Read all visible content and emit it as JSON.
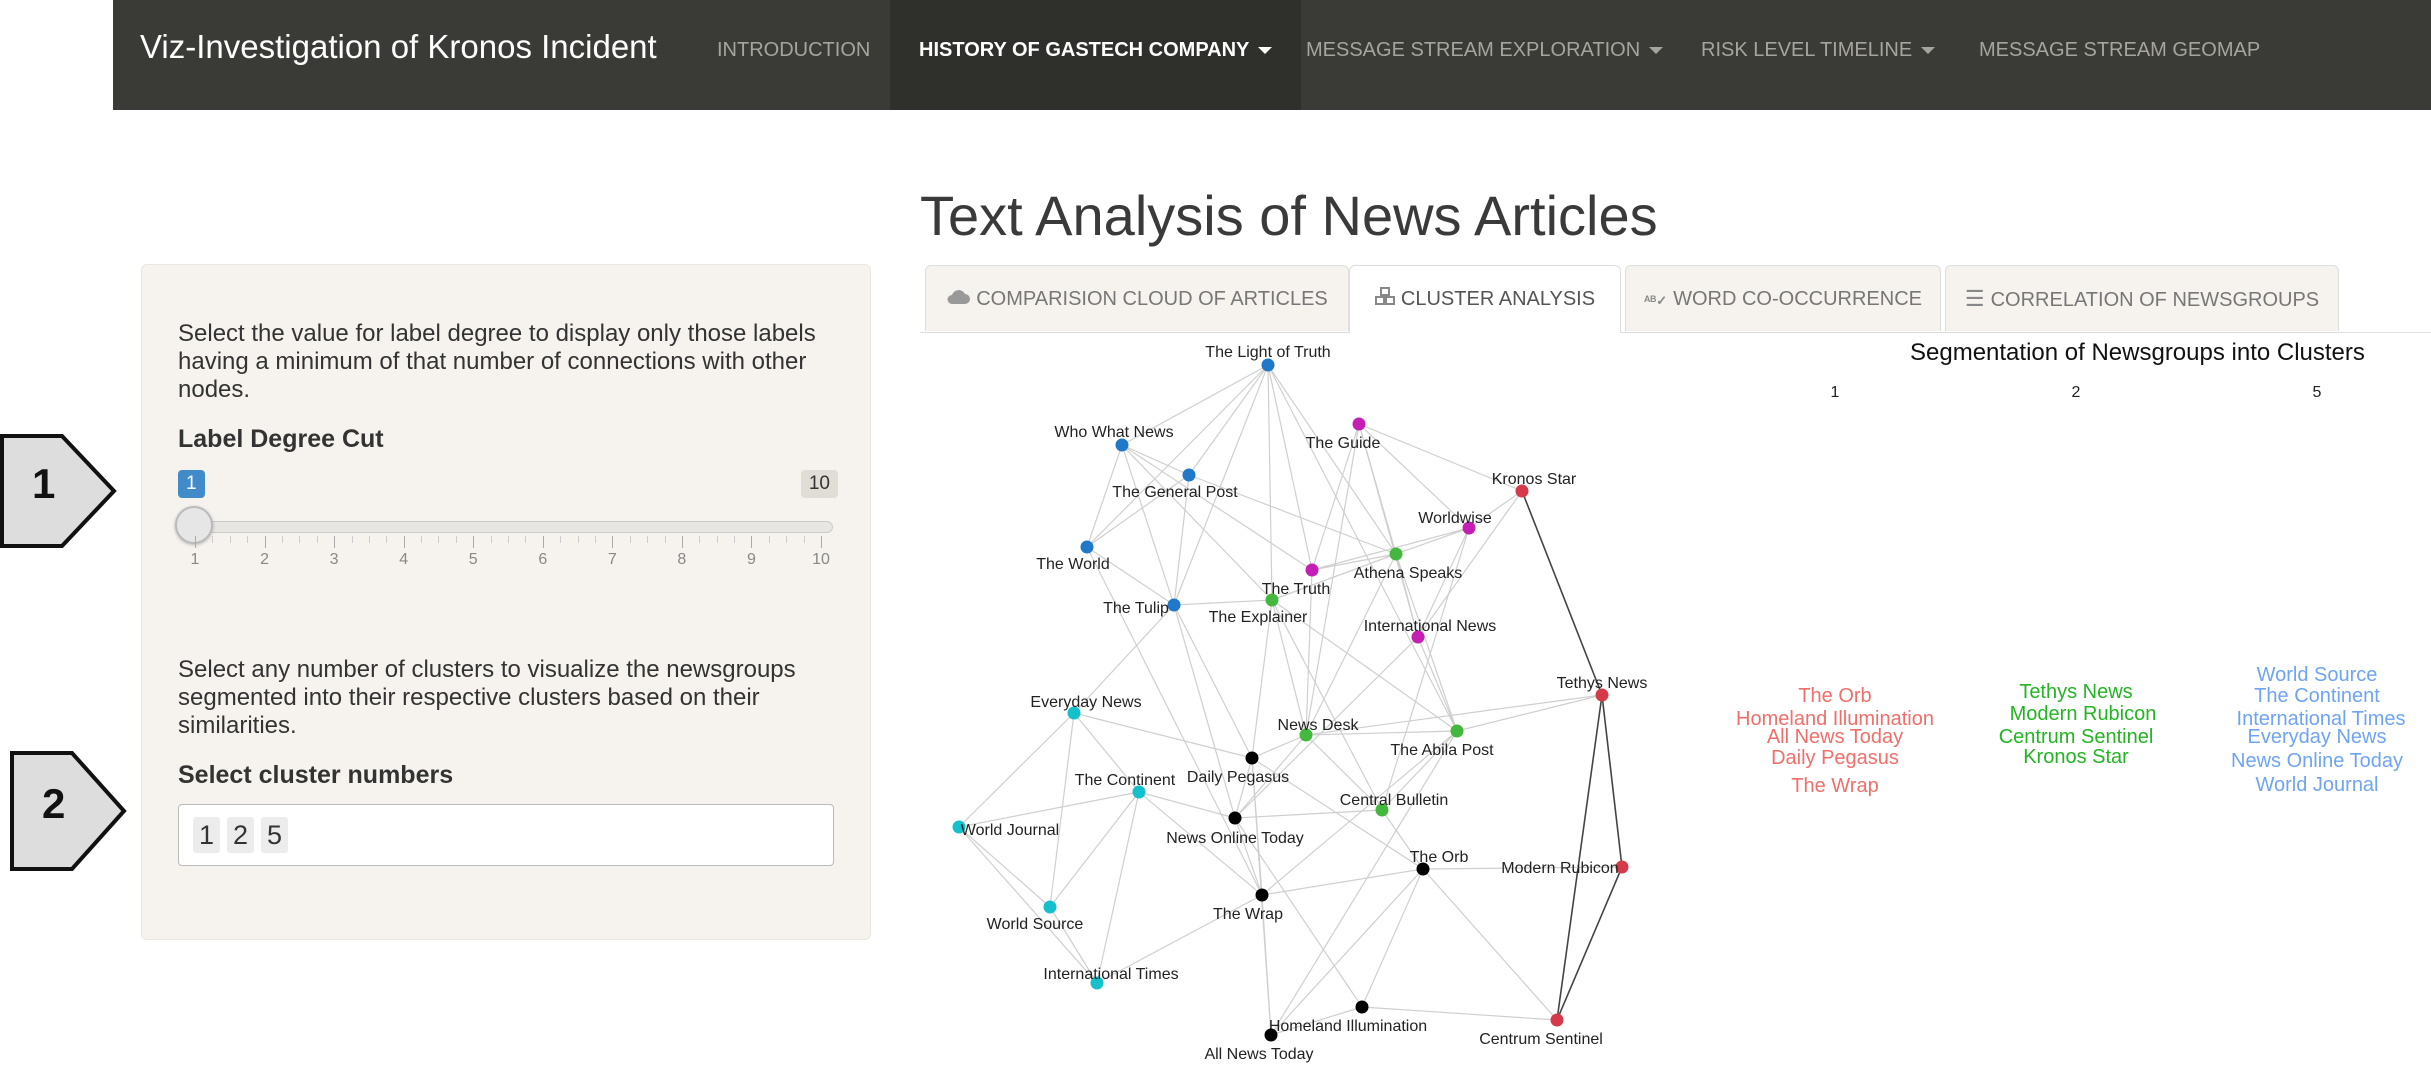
{
  "app": {
    "brand": "Viz-Investigation of Kronos Incident",
    "nav": [
      {
        "label": "INTRODUCTION",
        "active": false,
        "dropdown": false
      },
      {
        "label": "HISTORY OF GASTECH COMPANY",
        "active": true,
        "dropdown": true
      },
      {
        "label": "MESSAGE STREAM EXPLORATION",
        "active": false,
        "dropdown": true
      },
      {
        "label": "RISK LEVEL TIMELINE",
        "active": false,
        "dropdown": true
      },
      {
        "label": "MESSAGE STREAM GEOMAP",
        "active": false,
        "dropdown": false
      }
    ]
  },
  "markers": [
    "1",
    "2"
  ],
  "sidebar": {
    "help1": "Select the value for label degree to display only those labels having a minimum of that number of connections with other nodes.",
    "slider_label": "Label Degree Cut",
    "slider": {
      "min": 1,
      "max": 10,
      "value": 1,
      "min_text": "1",
      "max_text": "10",
      "ticks": [
        "1",
        "2",
        "3",
        "4",
        "5",
        "6",
        "7",
        "8",
        "9",
        "10"
      ]
    },
    "help2": "Select any number of clusters to visualize the newsgroups segmented into their respective clusters based on their similarities.",
    "select_label": "Select cluster numbers",
    "selected": [
      "1",
      "2",
      "5"
    ]
  },
  "main": {
    "title": "Text Analysis of News Articles",
    "tabs": [
      {
        "label": "COMPARISION CLOUD OF ARTICLES",
        "icon": "cloud-icon",
        "active": false
      },
      {
        "label": "CLUSTER ANALYSIS",
        "icon": "cubes-icon",
        "active": true
      },
      {
        "label": "WORD CO-OCCURRENCE",
        "icon": "spell-check-icon",
        "active": false
      },
      {
        "label": "CORRELATION OF NEWSGROUPS",
        "icon": "list-icon",
        "active": false
      }
    ]
  },
  "network": {
    "colors": {
      "blue": "#1f78c8",
      "magenta": "#c41eb4",
      "green": "#44b83e",
      "red": "#d43a4a",
      "cyan": "#14c0cc",
      "black": "#000000"
    },
    "nodes": [
      {
        "label": "The Light of Truth",
        "group": "blue"
      },
      {
        "label": "Who What News",
        "group": "blue"
      },
      {
        "label": "The General Post",
        "group": "blue"
      },
      {
        "label": "The World",
        "group": "blue"
      },
      {
        "label": "The Tulip",
        "group": "blue"
      },
      {
        "label": "The Guide",
        "group": "magenta"
      },
      {
        "label": "Worldwise",
        "group": "magenta"
      },
      {
        "label": "The Truth",
        "group": "magenta"
      },
      {
        "label": "International News",
        "group": "magenta"
      },
      {
        "label": "Athena Speaks",
        "group": "green"
      },
      {
        "label": "The Explainer",
        "group": "green"
      },
      {
        "label": "News Desk",
        "group": "green"
      },
      {
        "label": "The Abila Post",
        "group": "green"
      },
      {
        "label": "Central Bulletin",
        "group": "green"
      },
      {
        "label": "Kronos Star",
        "group": "red"
      },
      {
        "label": "Tethys News",
        "group": "red"
      },
      {
        "label": "Modern Rubicon",
        "group": "red"
      },
      {
        "label": "Centrum Sentinel",
        "group": "red"
      },
      {
        "label": "Everyday News",
        "group": "cyan"
      },
      {
        "label": "The Continent",
        "group": "cyan"
      },
      {
        "label": "World Journal",
        "group": "cyan"
      },
      {
        "label": "World Source",
        "group": "cyan"
      },
      {
        "label": "International Times",
        "group": "cyan"
      },
      {
        "label": "Daily Pegasus",
        "group": "black"
      },
      {
        "label": "News Online Today",
        "group": "black"
      },
      {
        "label": "The Wrap",
        "group": "black"
      },
      {
        "label": "The Orb",
        "group": "black"
      },
      {
        "label": "Homeland Illumination",
        "group": "black"
      },
      {
        "label": "All News Today",
        "group": "black"
      }
    ]
  },
  "segmentation": {
    "title": "Segmentation of Newsgroups into Clusters",
    "clusters": [
      {
        "id": "1",
        "color": "#f06f6a",
        "items": [
          "The Orb",
          "Homeland Illumination",
          "All News Today",
          "Daily Pegasus",
          "The Wrap"
        ]
      },
      {
        "id": "2",
        "color": "#22b522",
        "items": [
          "Tethys News",
          "Modern Rubicon",
          "Centrum Sentinel",
          "Kronos Star"
        ]
      },
      {
        "id": "5",
        "color": "#6ea4f3",
        "items": [
          "World Source",
          "The Continent",
          "International Times",
          "Everyday News",
          "News Online Today",
          "World Journal"
        ]
      }
    ]
  }
}
